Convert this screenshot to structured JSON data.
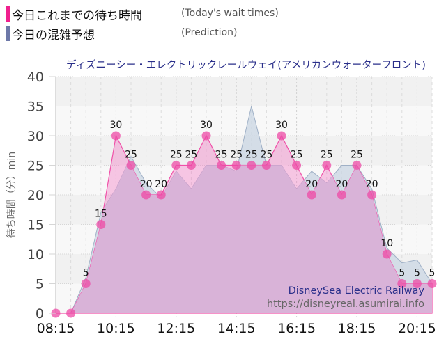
{
  "legend": {
    "actual": {
      "label": "今日これまでの待ち時間",
      "en": "(Today's wait times)",
      "color": "#f0208e"
    },
    "prediction": {
      "label": "今日の混雑予想",
      "en": "(Prediction)",
      "color": "#6d78a8"
    }
  },
  "chart_data": {
    "type": "area",
    "title": "ディズニーシー・エレクトリックレールウェイ(アメリカンウォーターフロント)",
    "xlabel": "",
    "ylabel": "待ち時間（分）min",
    "ylim": [
      0,
      40
    ],
    "yticks": [
      0,
      5,
      10,
      15,
      20,
      25,
      30,
      35,
      40
    ],
    "xtick_labels": [
      "08:15",
      "10:15",
      "12:15",
      "14:15",
      "16:15",
      "18:15",
      "20:15"
    ],
    "grid": true,
    "legend_position": "top-left",
    "x": [
      "08:15",
      "08:45",
      "09:15",
      "09:45",
      "10:15",
      "10:45",
      "11:15",
      "11:45",
      "12:15",
      "12:45",
      "13:15",
      "13:45",
      "14:15",
      "14:45",
      "15:15",
      "15:45",
      "16:15",
      "16:45",
      "17:15",
      "17:45",
      "18:15",
      "18:45",
      "19:15",
      "19:45",
      "20:15",
      "20:45"
    ],
    "series": [
      {
        "name": "今日これまでの待ち時間 (Today's wait times)",
        "color": "#f0208e",
        "values": [
          0,
          0,
          5,
          15,
          30,
          25,
          20,
          20,
          25,
          25,
          30,
          25,
          25,
          25,
          25,
          30,
          25,
          20,
          25,
          20,
          25,
          20,
          10,
          5,
          5,
          5
        ]
      },
      {
        "name": "今日の混雑予想 (Prediction)",
        "color": "#6d78a8",
        "values": [
          0,
          0,
          6,
          17,
          21,
          26.5,
          22,
          19.5,
          24,
          21,
          25,
          25,
          24,
          35,
          25,
          25,
          21,
          24,
          22,
          25,
          25,
          21,
          11,
          8.5,
          9,
          5
        ]
      }
    ],
    "annotations": [
      "DisneySea Electric Railway",
      "https://disneyreal.asumirai.info"
    ]
  }
}
